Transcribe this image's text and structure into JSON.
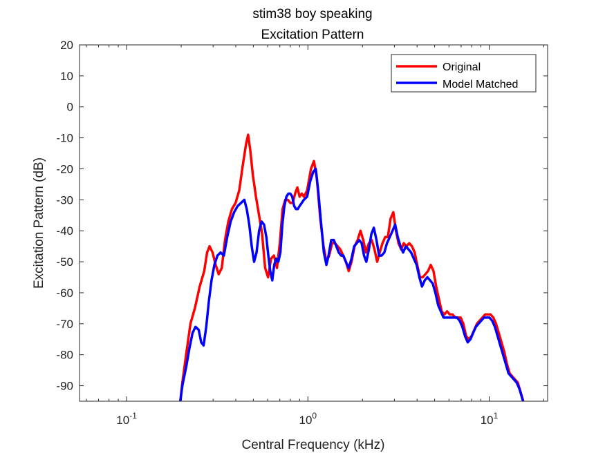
{
  "chart_data": {
    "type": "line",
    "title": [
      "stim38 boy speaking",
      "Excitation Pattern"
    ],
    "xlabel": "Central Frequency (kHz)",
    "ylabel": "Excitation Pattern (dB)",
    "xscale": "log",
    "xlim": [
      0.055,
      21
    ],
    "ylim": [
      -95,
      20
    ],
    "xticks": [
      {
        "value": 0.1,
        "base": "10",
        "exp": "-1"
      },
      {
        "value": 1,
        "base": "10",
        "exp": "0"
      },
      {
        "value": 10,
        "base": "10",
        "exp": "1"
      }
    ],
    "yticks": [
      20,
      10,
      0,
      -10,
      -20,
      -30,
      -40,
      -50,
      -60,
      -70,
      -80,
      -90
    ],
    "grid": false,
    "legend_position": "top-right",
    "series": [
      {
        "name": "Original",
        "color": "#ff0000",
        "points": [
          [
            0.197,
            -96
          ],
          [
            0.203,
            -89
          ],
          [
            0.213,
            -80
          ],
          [
            0.225,
            -70
          ],
          [
            0.238,
            -65
          ],
          [
            0.253,
            -58
          ],
          [
            0.268,
            -53
          ],
          [
            0.278,
            -47
          ],
          [
            0.287,
            -45
          ],
          [
            0.298,
            -47
          ],
          [
            0.31,
            -51
          ],
          [
            0.322,
            -54
          ],
          [
            0.335,
            -52
          ],
          [
            0.349,
            -43
          ],
          [
            0.364,
            -37
          ],
          [
            0.381,
            -33
          ],
          [
            0.399,
            -31
          ],
          [
            0.418,
            -27
          ],
          [
            0.437,
            -19
          ],
          [
            0.456,
            -12
          ],
          [
            0.468,
            -9
          ],
          [
            0.481,
            -14
          ],
          [
            0.497,
            -22
          ],
          [
            0.517,
            -29
          ],
          [
            0.538,
            -35
          ],
          [
            0.559,
            -41
          ],
          [
            0.581,
            -52
          ],
          [
            0.603,
            -55
          ],
          [
            0.626,
            -49
          ],
          [
            0.65,
            -48
          ],
          [
            0.675,
            -52
          ],
          [
            0.7,
            -44
          ],
          [
            0.725,
            -33
          ],
          [
            0.75,
            -30
          ],
          [
            0.775,
            -30
          ],
          [
            0.8,
            -31
          ],
          [
            0.825,
            -31
          ],
          [
            0.85,
            -28
          ],
          [
            0.875,
            -26
          ],
          [
            0.9,
            -29
          ],
          [
            0.925,
            -28
          ],
          [
            0.95,
            -29
          ],
          [
            0.99,
            -27
          ],
          [
            1.04,
            -20
          ],
          [
            1.08,
            -17.5
          ],
          [
            1.12,
            -23
          ],
          [
            1.17,
            -36
          ],
          [
            1.22,
            -45
          ],
          [
            1.265,
            -50
          ],
          [
            1.31,
            -48
          ],
          [
            1.36,
            -44
          ],
          [
            1.41,
            -44
          ],
          [
            1.46,
            -45
          ],
          [
            1.51,
            -46
          ],
          [
            1.565,
            -48
          ],
          [
            1.62,
            -50
          ],
          [
            1.68,
            -53
          ],
          [
            1.74,
            -50
          ],
          [
            1.81,
            -45
          ],
          [
            1.88,
            -43
          ],
          [
            1.95,
            -40
          ],
          [
            2.02,
            -43
          ],
          [
            2.09,
            -47
          ],
          [
            2.17,
            -44
          ],
          [
            2.25,
            -43
          ],
          [
            2.33,
            -46
          ],
          [
            2.41,
            -50
          ],
          [
            2.49,
            -47
          ],
          [
            2.58,
            -44
          ],
          [
            2.67,
            -42
          ],
          [
            2.76,
            -42
          ],
          [
            2.86,
            -36
          ],
          [
            2.96,
            -34
          ],
          [
            3.06,
            -40
          ],
          [
            3.16,
            -44
          ],
          [
            3.27,
            -46
          ],
          [
            3.38,
            -44
          ],
          [
            3.5,
            -45
          ],
          [
            3.62,
            -44
          ],
          [
            3.75,
            -45
          ],
          [
            3.88,
            -47
          ],
          [
            4.01,
            -51
          ],
          [
            4.15,
            -55
          ],
          [
            4.3,
            -55
          ],
          [
            4.45,
            -54
          ],
          [
            4.6,
            -53
          ],
          [
            4.76,
            -51
          ],
          [
            4.93,
            -53
          ],
          [
            5.1,
            -58
          ],
          [
            5.28,
            -62
          ],
          [
            5.47,
            -66
          ],
          [
            5.66,
            -67
          ],
          [
            5.86,
            -66
          ],
          [
            6.06,
            -67
          ],
          [
            6.28,
            -67
          ],
          [
            6.5,
            -68
          ],
          [
            6.72,
            -68
          ],
          [
            6.96,
            -68
          ],
          [
            7.2,
            -70
          ],
          [
            7.46,
            -74
          ],
          [
            7.72,
            -75
          ],
          [
            7.99,
            -74
          ],
          [
            8.27,
            -72
          ],
          [
            8.56,
            -70
          ],
          [
            8.86,
            -69
          ],
          [
            9.18,
            -68
          ],
          [
            9.5,
            -67
          ],
          [
            9.83,
            -67
          ],
          [
            10.18,
            -67
          ],
          [
            10.54,
            -68
          ],
          [
            10.91,
            -70
          ],
          [
            11.29,
            -73
          ],
          [
            11.69,
            -76
          ],
          [
            12.1,
            -79
          ],
          [
            12.53,
            -83
          ],
          [
            12.97,
            -86
          ],
          [
            13.42,
            -87
          ],
          [
            13.89,
            -88
          ],
          [
            14.38,
            -89
          ],
          [
            14.89,
            -92
          ],
          [
            15.42,
            -95
          ],
          [
            15.7,
            -97
          ]
        ]
      },
      {
        "name": "Model Matched",
        "color": "#0000ff",
        "points": [
          [
            0.197,
            -96
          ],
          [
            0.203,
            -90
          ],
          [
            0.213,
            -84
          ],
          [
            0.222,
            -78
          ],
          [
            0.231,
            -73
          ],
          [
            0.24,
            -71
          ],
          [
            0.25,
            -72
          ],
          [
            0.258,
            -76
          ],
          [
            0.266,
            -77
          ],
          [
            0.275,
            -71
          ],
          [
            0.284,
            -63
          ],
          [
            0.294,
            -56
          ],
          [
            0.305,
            -51
          ],
          [
            0.317,
            -48
          ],
          [
            0.33,
            -47
          ],
          [
            0.344,
            -48
          ],
          [
            0.359,
            -42
          ],
          [
            0.375,
            -37
          ],
          [
            0.392,
            -34
          ],
          [
            0.41,
            -32
          ],
          [
            0.428,
            -31
          ],
          [
            0.446,
            -30
          ],
          [
            0.46,
            -33
          ],
          [
            0.475,
            -38
          ],
          [
            0.49,
            -45
          ],
          [
            0.505,
            -50
          ],
          [
            0.521,
            -47
          ],
          [
            0.538,
            -40
          ],
          [
            0.555,
            -37
          ],
          [
            0.573,
            -38
          ],
          [
            0.59,
            -42
          ],
          [
            0.605,
            -48
          ],
          [
            0.62,
            -53
          ],
          [
            0.636,
            -56
          ],
          [
            0.652,
            -51
          ],
          [
            0.669,
            -49
          ],
          [
            0.687,
            -50
          ],
          [
            0.705,
            -47
          ],
          [
            0.723,
            -38
          ],
          [
            0.742,
            -32
          ],
          [
            0.761,
            -29
          ],
          [
            0.781,
            -28
          ],
          [
            0.8,
            -28
          ],
          [
            0.82,
            -29
          ],
          [
            0.84,
            -32
          ],
          [
            0.86,
            -33
          ],
          [
            0.88,
            -33
          ],
          [
            0.9,
            -32
          ],
          [
            0.925,
            -31
          ],
          [
            0.95,
            -30
          ],
          [
            0.99,
            -29
          ],
          [
            1.03,
            -24
          ],
          [
            1.07,
            -21
          ],
          [
            1.105,
            -20
          ],
          [
            1.14,
            -27
          ],
          [
            1.18,
            -37
          ],
          [
            1.225,
            -47
          ],
          [
            1.265,
            -51
          ],
          [
            1.3,
            -48
          ],
          [
            1.345,
            -43
          ],
          [
            1.39,
            -43
          ],
          [
            1.435,
            -45
          ],
          [
            1.48,
            -47
          ],
          [
            1.525,
            -48
          ],
          [
            1.57,
            -48
          ],
          [
            1.62,
            -50
          ],
          [
            1.68,
            -52
          ],
          [
            1.74,
            -49
          ],
          [
            1.8,
            -45
          ],
          [
            1.86,
            -44
          ],
          [
            1.92,
            -43
          ],
          [
            1.98,
            -44
          ],
          [
            2.04,
            -48
          ],
          [
            2.1,
            -50
          ],
          [
            2.17,
            -46
          ],
          [
            2.24,
            -41
          ],
          [
            2.31,
            -39
          ],
          [
            2.39,
            -43
          ],
          [
            2.47,
            -48
          ],
          [
            2.55,
            -48
          ],
          [
            2.64,
            -47
          ],
          [
            2.73,
            -44
          ],
          [
            2.83,
            -42
          ],
          [
            2.93,
            -40
          ],
          [
            3.03,
            -38
          ],
          [
            3.13,
            -42
          ],
          [
            3.24,
            -45
          ],
          [
            3.35,
            -47
          ],
          [
            3.47,
            -45
          ],
          [
            3.59,
            -46
          ],
          [
            3.71,
            -47
          ],
          [
            3.84,
            -49
          ],
          [
            3.98,
            -51
          ],
          [
            4.12,
            -55
          ],
          [
            4.26,
            -58
          ],
          [
            4.41,
            -56
          ],
          [
            4.56,
            -55
          ],
          [
            4.72,
            -56
          ],
          [
            4.88,
            -57
          ],
          [
            5.05,
            -60
          ],
          [
            5.23,
            -64
          ],
          [
            5.41,
            -66
          ],
          [
            5.6,
            -68
          ],
          [
            5.79,
            -68
          ],
          [
            5.99,
            -68
          ],
          [
            6.2,
            -68
          ],
          [
            6.42,
            -68
          ],
          [
            6.64,
            -68
          ],
          [
            6.87,
            -69
          ],
          [
            7.11,
            -71
          ],
          [
            7.36,
            -74
          ],
          [
            7.61,
            -76
          ],
          [
            7.88,
            -75
          ],
          [
            8.15,
            -73
          ],
          [
            8.44,
            -71
          ],
          [
            8.73,
            -70
          ],
          [
            9.04,
            -69
          ],
          [
            9.36,
            -68
          ],
          [
            9.69,
            -68
          ],
          [
            10.03,
            -68
          ],
          [
            10.38,
            -69
          ],
          [
            10.75,
            -71
          ],
          [
            11.13,
            -74
          ],
          [
            11.52,
            -77
          ],
          [
            11.93,
            -80
          ],
          [
            12.35,
            -83
          ],
          [
            12.78,
            -86
          ],
          [
            13.23,
            -87
          ],
          [
            13.7,
            -88
          ],
          [
            14.18,
            -89
          ],
          [
            14.68,
            -91
          ],
          [
            15.2,
            -94
          ],
          [
            15.7,
            -97
          ]
        ]
      }
    ]
  }
}
